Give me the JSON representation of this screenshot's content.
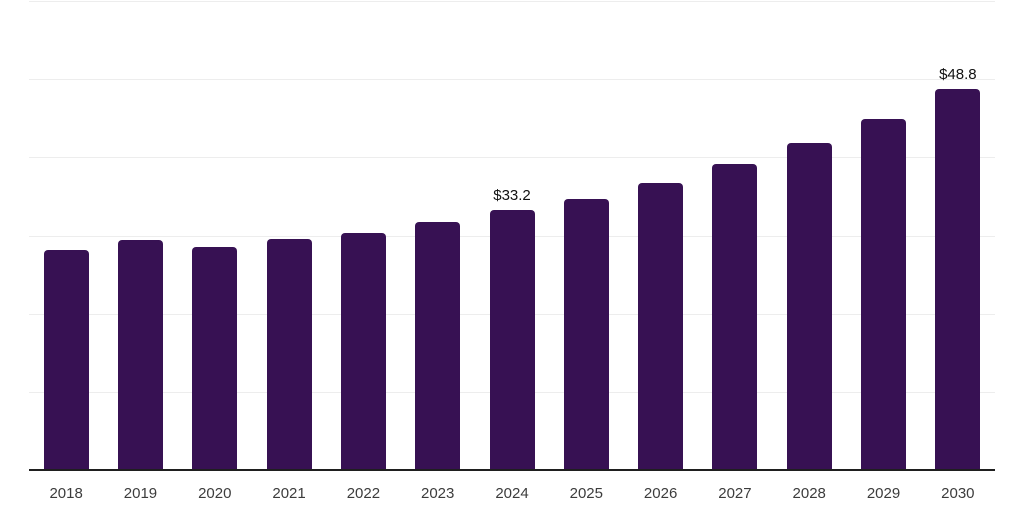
{
  "chart_data": {
    "type": "bar",
    "title": "",
    "xlabel": "",
    "ylabel": "",
    "categories": [
      "2018",
      "2019",
      "2020",
      "2021",
      "2022",
      "2023",
      "2024",
      "2025",
      "2026",
      "2027",
      "2028",
      "2029",
      "2030"
    ],
    "values": [
      28.1,
      29.4,
      28.5,
      29.6,
      30.3,
      31.7,
      33.2,
      34.7,
      36.7,
      39.1,
      41.8,
      44.9,
      48.8
    ],
    "annotations": [
      {
        "category": "2024",
        "label": "$33.2"
      },
      {
        "category": "2030",
        "label": "$48.8"
      }
    ],
    "ylim": [
      0,
      60
    ],
    "grid_step": 10,
    "grid": true,
    "legend": false,
    "colors": {
      "bar": "#371153",
      "gridline": "#ededed",
      "axis": "#1f1f1f",
      "tick_label": "#3c3c3c",
      "value_label": "#111111",
      "background": "#ffffff"
    }
  }
}
